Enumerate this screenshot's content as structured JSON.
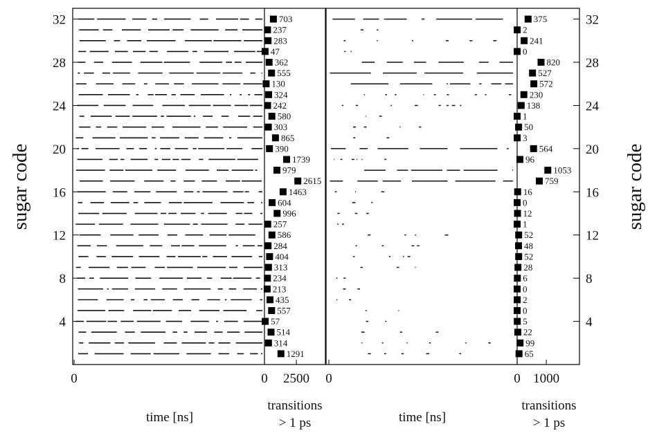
{
  "chart_data": [
    {
      "type": "scatter",
      "panel": "left-timeline",
      "xlabel": "time [ns]",
      "ylabel": "sugar code",
      "xticks": [
        "0"
      ],
      "yticks": [
        "4",
        "8",
        "12",
        "16",
        "20",
        "24",
        "28",
        "32"
      ],
      "ylim": [
        0,
        33
      ],
      "traces": "occupancy segments per sugar code over time"
    },
    {
      "type": "bar",
      "panel": "left-transitions",
      "xlabel": "transitions\n> 1 ps",
      "xticks": [
        "0",
        "2500"
      ],
      "xlim": [
        0,
        3800
      ],
      "categories": [
        32,
        31,
        30,
        29,
        28,
        27,
        26,
        25,
        24,
        23,
        22,
        21,
        20,
        19,
        18,
        17,
        16,
        15,
        14,
        13,
        12,
        11,
        10,
        9,
        8,
        7,
        6,
        5,
        4,
        3,
        2,
        1
      ],
      "values": [
        703,
        237,
        283,
        47,
        362,
        555,
        130,
        324,
        242,
        580,
        303,
        865,
        390,
        1739,
        979,
        2615,
        1463,
        604,
        996,
        257,
        586,
        284,
        404,
        313,
        234,
        213,
        435,
        557,
        57,
        514,
        314,
        1291
      ]
    },
    {
      "type": "scatter",
      "panel": "right-timeline",
      "xlabel": "time [ns]",
      "xticks": [
        "0"
      ],
      "traces": "occupancy segments per sugar code over time"
    },
    {
      "type": "bar",
      "panel": "right-transitions",
      "xlabel": "transitions\n> 1 ps",
      "xticks": [
        "0",
        "1000"
      ],
      "xlim": [
        0,
        1900
      ],
      "categories": [
        32,
        31,
        30,
        29,
        28,
        27,
        26,
        25,
        24,
        23,
        22,
        21,
        20,
        19,
        18,
        17,
        16,
        15,
        14,
        13,
        12,
        11,
        10,
        9,
        8,
        7,
        6,
        5,
        4,
        3,
        2,
        1
      ],
      "values": [
        375,
        2,
        241,
        0,
        820,
        527,
        572,
        230,
        138,
        1,
        50,
        3,
        564,
        96,
        1053,
        759,
        16,
        0,
        12,
        1,
        52,
        48,
        52,
        28,
        6,
        0,
        2,
        0,
        5,
        22,
        99,
        65
      ]
    }
  ],
  "labels": {
    "y_left": "sugar code",
    "y_right": "sugar code",
    "time_left": "time [ns]",
    "time_right": "time [ns]",
    "transitions_line1": "transitions",
    "transitions_line2": "> 1 ps"
  }
}
